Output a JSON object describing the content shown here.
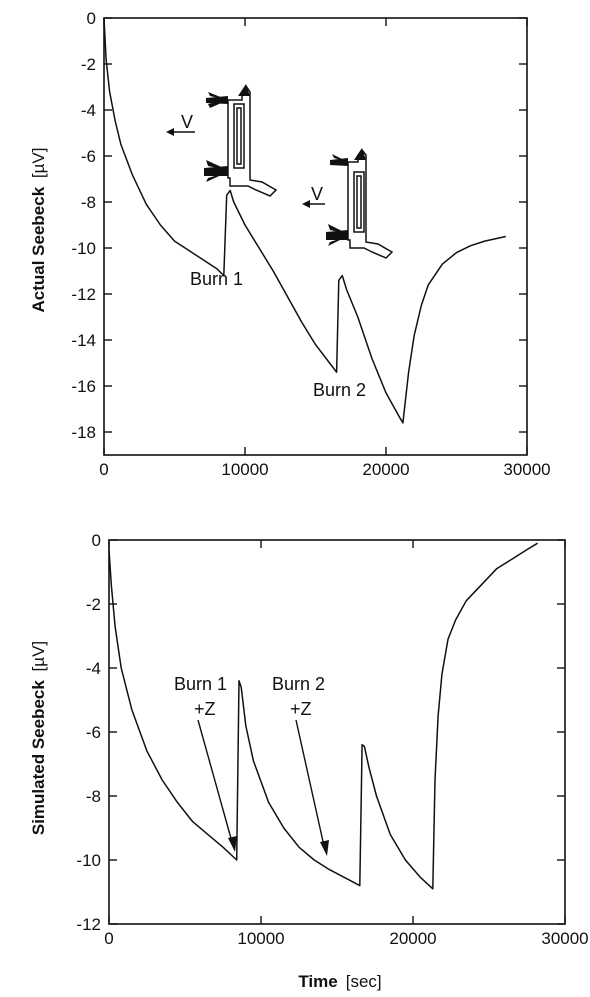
{
  "chart_data": [
    {
      "type": "line",
      "ylabel": "Actual Seebeck",
      "ylabel_unit": "[µV]",
      "xlabel": "",
      "xlim": [
        0,
        30000
      ],
      "ylim": [
        -19,
        0
      ],
      "x_ticks": [
        0,
        10000,
        20000,
        30000
      ],
      "y_ticks": [
        0,
        -2,
        -4,
        -6,
        -8,
        -10,
        -12,
        -14,
        -16,
        -18
      ],
      "series": [
        {
          "x": [
            0,
            150,
            400,
            800,
            1200,
            2000,
            3000,
            4000,
            5000,
            6000,
            7000,
            8000,
            8500,
            8700,
            8950,
            9200,
            10000,
            11000,
            12000,
            13000,
            14000,
            15000,
            16000,
            16500,
            16650,
            16900,
            17200,
            18000,
            19000,
            20000,
            21000,
            21200,
            21600,
            22000,
            22500,
            23000,
            24000,
            25000,
            26000,
            27000,
            28500
          ],
          "y": [
            0,
            -1.8,
            -3.2,
            -4.5,
            -5.5,
            -6.8,
            -8.1,
            -9.0,
            -9.7,
            -10.1,
            -10.5,
            -10.9,
            -11.2,
            -7.7,
            -7.5,
            -8.0,
            -9.0,
            -10.0,
            -11.0,
            -12.1,
            -13.2,
            -14.2,
            -15.0,
            -15.4,
            -11.4,
            -11.2,
            -11.8,
            -13.0,
            -14.8,
            -16.3,
            -17.4,
            -17.6,
            -15.4,
            -13.8,
            -12.5,
            -11.6,
            -10.7,
            -10.2,
            -9.9,
            -9.7,
            -9.5
          ]
        }
      ],
      "annotations": [
        {
          "id": "burn1",
          "text": "Burn 1"
        },
        {
          "id": "burn2",
          "text": "Burn 2"
        },
        {
          "id": "v1",
          "text": "V"
        },
        {
          "id": "v2",
          "text": "V"
        }
      ]
    },
    {
      "type": "line",
      "ylabel": "Simulated Seebeck",
      "ylabel_unit": "[µV]",
      "xlabel": "Time",
      "xlabel_unit": "[sec]",
      "xlim": [
        0,
        30000
      ],
      "ylim": [
        -12,
        0
      ],
      "x_ticks": [
        0,
        10000,
        20000,
        30000
      ],
      "y_ticks": [
        0,
        -2,
        -4,
        -6,
        -8,
        -10,
        -12
      ],
      "series": [
        {
          "x": [
            0,
            150,
            400,
            800,
            1500,
            2500,
            3500,
            4500,
            5500,
            6500,
            7500,
            8400,
            8550,
            8700,
            9000,
            9500,
            10500,
            11500,
            12500,
            13500,
            14500,
            15500,
            16500,
            16650,
            16800,
            17100,
            17600,
            18500,
            19500,
            20500,
            21300,
            21450,
            21650,
            21900,
            22300,
            22800,
            23500,
            24500,
            25500,
            26500,
            27500,
            28200
          ],
          "y": [
            -0.3,
            -1.4,
            -2.7,
            -4.0,
            -5.3,
            -6.6,
            -7.5,
            -8.2,
            -8.8,
            -9.2,
            -9.6,
            -10.0,
            -4.4,
            -4.6,
            -5.8,
            -6.9,
            -8.2,
            -9.0,
            -9.6,
            -10.0,
            -10.3,
            -10.55,
            -10.8,
            -6.4,
            -6.45,
            -7.1,
            -8.0,
            -9.2,
            -10.0,
            -10.55,
            -10.9,
            -7.5,
            -5.5,
            -4.2,
            -3.1,
            -2.5,
            -1.9,
            -1.4,
            -0.9,
            -0.6,
            -0.3,
            -0.1
          ]
        }
      ],
      "annotations": [
        {
          "id": "burn1",
          "line1": "Burn 1",
          "line2": "+Z"
        },
        {
          "id": "burn2",
          "line1": "Burn 2",
          "line2": "+Z"
        }
      ]
    }
  ]
}
